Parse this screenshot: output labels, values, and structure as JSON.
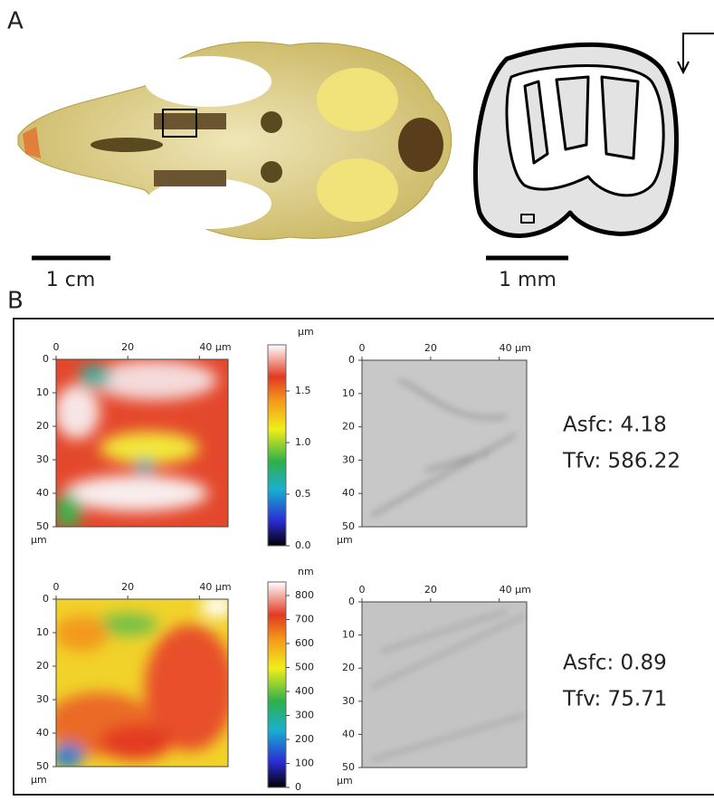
{
  "panel_a": {
    "label": "A",
    "scale_bars": [
      "1 cm",
      "1 mm"
    ]
  },
  "panel_b": {
    "label": "B",
    "rows": [
      {
        "height_map": {
          "x_ticks": [
            "0",
            "20",
            "40 μm"
          ],
          "y_ticks": [
            "0",
            "10",
            "20",
            "30",
            "40",
            "50"
          ],
          "y_unit": "μm"
        },
        "colorbar": {
          "unit": "μm",
          "ticks": [
            "0.0",
            "0.5",
            "1.0",
            "1.5"
          ]
        },
        "shaded_map": {
          "x_ticks": [
            "0",
            "20",
            "40 μm"
          ],
          "y_ticks": [
            "0",
            "10",
            "20",
            "30",
            "40",
            "50"
          ],
          "y_unit": "μm"
        },
        "metrics": [
          "Asfc: 4.18",
          "Tfv: 586.22"
        ]
      },
      {
        "height_map": {
          "x_ticks": [
            "0",
            "20",
            "40 μm"
          ],
          "y_ticks": [
            "0",
            "10",
            "20",
            "30",
            "40",
            "50"
          ],
          "y_unit": "μm"
        },
        "colorbar": {
          "unit": "nm",
          "ticks": [
            "0",
            "100",
            "200",
            "300",
            "400",
            "500",
            "600",
            "700",
            "800"
          ]
        },
        "shaded_map": {
          "x_ticks": [
            "0",
            "20",
            "40 μm"
          ],
          "y_ticks": [
            "0",
            "10",
            "20",
            "30",
            "40",
            "50"
          ],
          "y_unit": "μm"
        },
        "metrics": [
          "Asfc: 0.89",
          "Tfv: 75.71"
        ]
      }
    ]
  }
}
